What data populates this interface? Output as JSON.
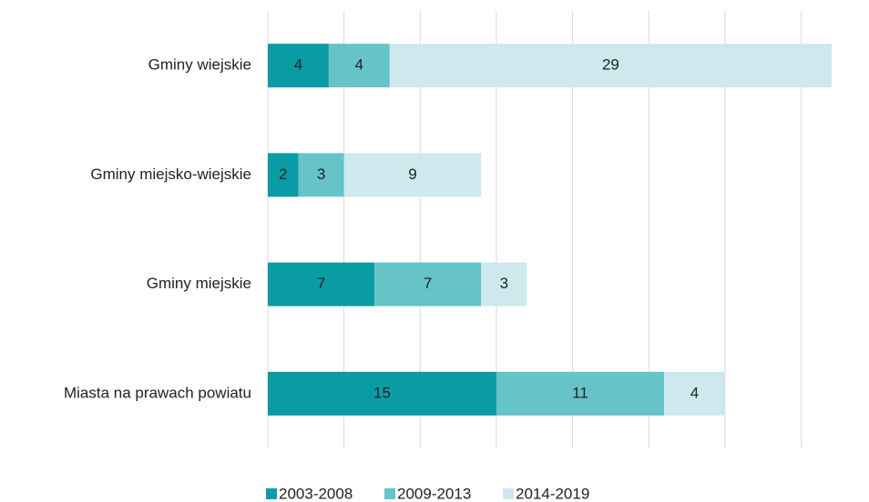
{
  "chart_data": {
    "type": "stacked_barh",
    "categories": [
      "Gminy wiejskie",
      "Gminy miejsko-wiejskie",
      "Gminy miejskie",
      "Miasta na prawach powiatu"
    ],
    "series": [
      {
        "name": "2003-2008",
        "color": "#0a9ca4",
        "values": [
          4,
          2,
          7,
          15
        ]
      },
      {
        "name": "2009-2013",
        "color": "#66c3c8",
        "values": [
          4,
          3,
          7,
          11
        ]
      },
      {
        "name": "2014-2019",
        "color": "#cde9ee",
        "values": [
          29,
          9,
          3,
          4
        ]
      }
    ],
    "xlim": [
      0,
      37
    ],
    "xticks": [
      0,
      5,
      10,
      15,
      20,
      25,
      30,
      35
    ],
    "grid": true,
    "legend": "bottom"
  }
}
